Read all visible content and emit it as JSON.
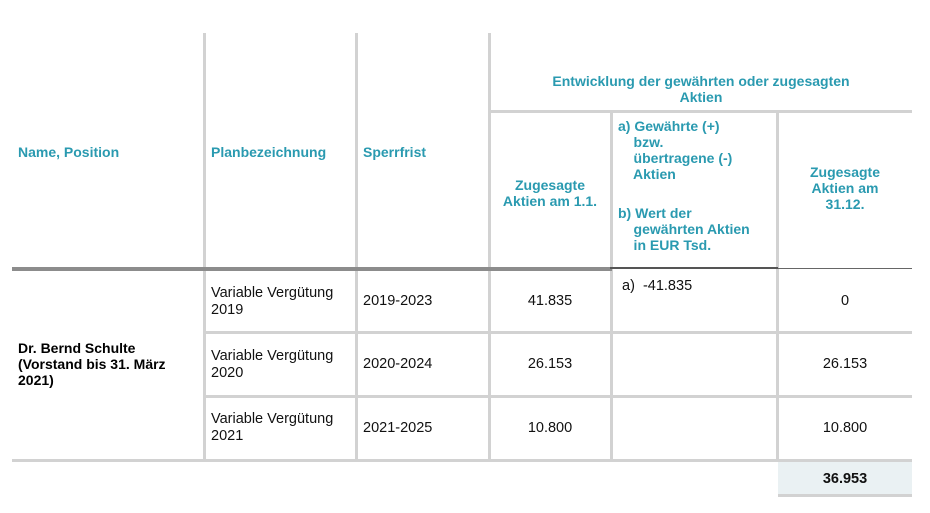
{
  "headers": {
    "name_position": "Name, Position",
    "plan": "Planbezeichnung",
    "sperrfrist": "Sperrfrist",
    "entwicklung": "Entwicklung der gewährten oder zugesagten\nAktien",
    "zugesagt_start": "Zugesagte\nAktien am 1.1.",
    "gewaehrt_a": "a) Gewährte (+)\n    bzw.\n    übertragene (-)\n    Aktien",
    "gewaehrt_b": "b) Wert der\n    gewährten Aktien\n    in EUR Tsd.",
    "zugesagt_end": "Zugesagte\nAktien am\n31.12."
  },
  "person": "Dr. Bernd Schulte\n(Vorstand bis 31. März\n2021)",
  "rows": [
    {
      "plan": "Variable Vergütung\n2019",
      "sperrfrist": "2019-2023",
      "start": "41.835",
      "change": "a)  -41.835",
      "end": "0"
    },
    {
      "plan": "Variable Vergütung\n2020",
      "sperrfrist": "2020-2024",
      "start": "26.153",
      "change": "",
      "end": "26.153"
    },
    {
      "plan": "Variable Vergütung\n2021",
      "sperrfrist": "2021-2025",
      "start": "10.800",
      "change": "",
      "end": "10.800"
    }
  ],
  "total": "36.953"
}
